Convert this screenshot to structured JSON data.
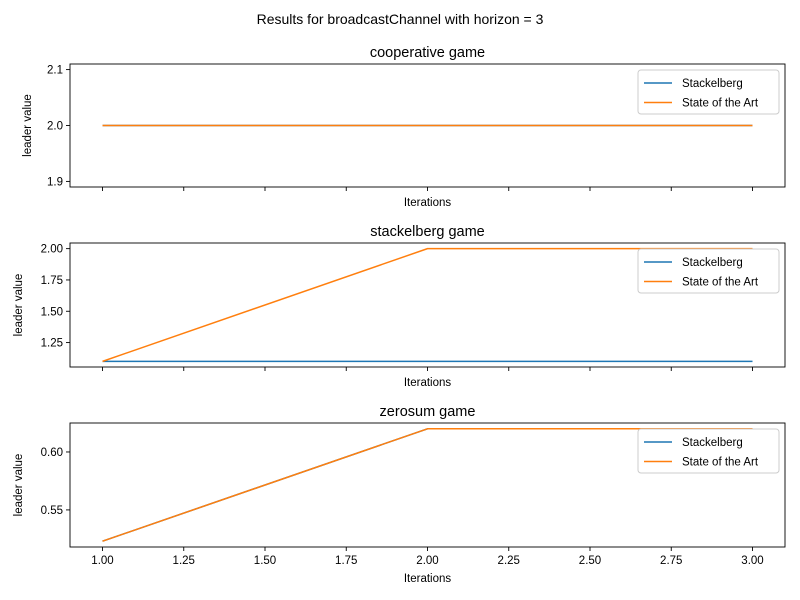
{
  "figure": {
    "suptitle": "Results for broadcastChannel with horizon = 3"
  },
  "colors": {
    "stackelberg": "#1f77b4",
    "state_of_the_art": "#ff7f0e",
    "axes": "#000000",
    "legend_border": "#cccccc"
  },
  "chart_data": [
    {
      "type": "line",
      "title": "cooperative game",
      "xlabel": "Iterations",
      "ylabel": "leader value",
      "xlim": [
        0.9,
        3.1
      ],
      "ylim": [
        1.89,
        2.11
      ],
      "xticks": [
        1.0,
        1.25,
        1.5,
        1.75,
        2.0,
        2.25,
        2.5,
        2.75,
        3.0
      ],
      "xtick_labels": [],
      "yticks": [
        1.9,
        2.0,
        2.1
      ],
      "ytick_labels": [
        "1.9",
        "2.0",
        "2.1"
      ],
      "legend": "upper right",
      "grid": false,
      "x": [
        1,
        2,
        3
      ],
      "series": [
        {
          "name": "Stackelberg",
          "values": [
            2.0,
            2.0,
            2.0
          ]
        },
        {
          "name": "State of the Art",
          "values": [
            2.0,
            2.0,
            2.0
          ]
        }
      ]
    },
    {
      "type": "line",
      "title": "stackelberg game",
      "xlabel": "Iterations",
      "ylabel": "leader value",
      "xlim": [
        0.9,
        3.1
      ],
      "ylim": [
        1.055,
        2.045
      ],
      "xticks": [
        1.0,
        1.25,
        1.5,
        1.75,
        2.0,
        2.25,
        2.5,
        2.75,
        3.0
      ],
      "xtick_labels": [],
      "yticks": [
        1.25,
        1.5,
        1.75,
        2.0
      ],
      "ytick_labels": [
        "1.25",
        "1.50",
        "1.75",
        "2.00"
      ],
      "legend": "upper right",
      "grid": false,
      "x": [
        1,
        2,
        3
      ],
      "series": [
        {
          "name": "Stackelberg",
          "values": [
            1.1,
            1.1,
            1.1
          ]
        },
        {
          "name": "State of the Art",
          "values": [
            1.1,
            2.0,
            2.0
          ]
        }
      ]
    },
    {
      "type": "line",
      "title": "zerosum game",
      "xlabel": "Iterations",
      "ylabel": "leader value",
      "xlim": [
        0.9,
        3.1
      ],
      "ylim": [
        0.518,
        0.625
      ],
      "xticks": [
        1.0,
        1.25,
        1.5,
        1.75,
        2.0,
        2.25,
        2.5,
        2.75,
        3.0
      ],
      "xtick_labels": [
        "1.00",
        "1.25",
        "1.50",
        "1.75",
        "2.00",
        "2.25",
        "2.50",
        "2.75",
        "3.00"
      ],
      "yticks": [
        0.55,
        0.6
      ],
      "ytick_labels": [
        "0.55",
        "0.60"
      ],
      "legend": "upper right",
      "grid": false,
      "x": [
        1,
        2,
        3
      ],
      "series": [
        {
          "name": "Stackelberg",
          "values": [
            0.523,
            0.62,
            0.62
          ]
        },
        {
          "name": "State of the Art",
          "values": [
            0.523,
            0.62,
            0.62
          ]
        }
      ]
    }
  ]
}
